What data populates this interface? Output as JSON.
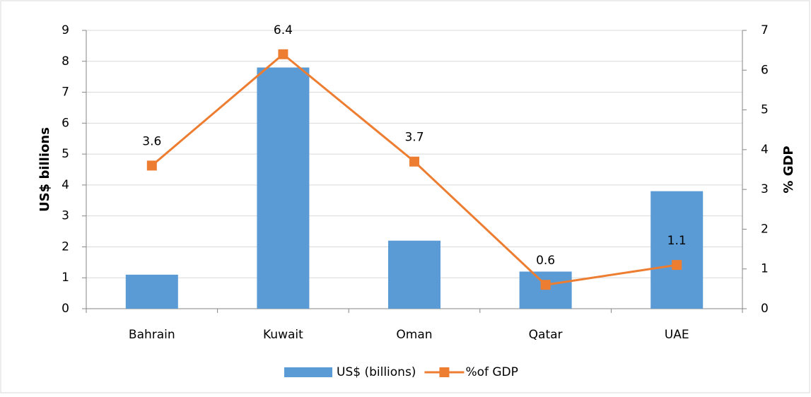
{
  "chart_data": {
    "type": "bar",
    "categories": [
      "Bahrain",
      "Kuwait",
      "Oman",
      "Qatar",
      "UAE"
    ],
    "series": [
      {
        "name": "US$ (billions)",
        "type": "bar",
        "color": "#5b9bd5",
        "values": [
          1.1,
          7.8,
          2.2,
          1.2,
          3.8
        ]
      },
      {
        "name": "%of GDP",
        "type": "line",
        "axis": "y2",
        "color": "#ed7d31",
        "values": [
          3.6,
          6.4,
          3.7,
          0.6,
          1.1
        ]
      }
    ],
    "ylabel": "US$ billions",
    "y2label": "% GDP",
    "ylim": [
      0,
      9
    ],
    "yticks": [
      0,
      1,
      2,
      3,
      4,
      5,
      6,
      7,
      8,
      9
    ],
    "y2lim": [
      0,
      7
    ],
    "y2ticks": [
      0,
      1,
      2,
      3,
      4,
      5,
      6,
      7
    ],
    "grid": true,
    "legend": "bottom"
  }
}
